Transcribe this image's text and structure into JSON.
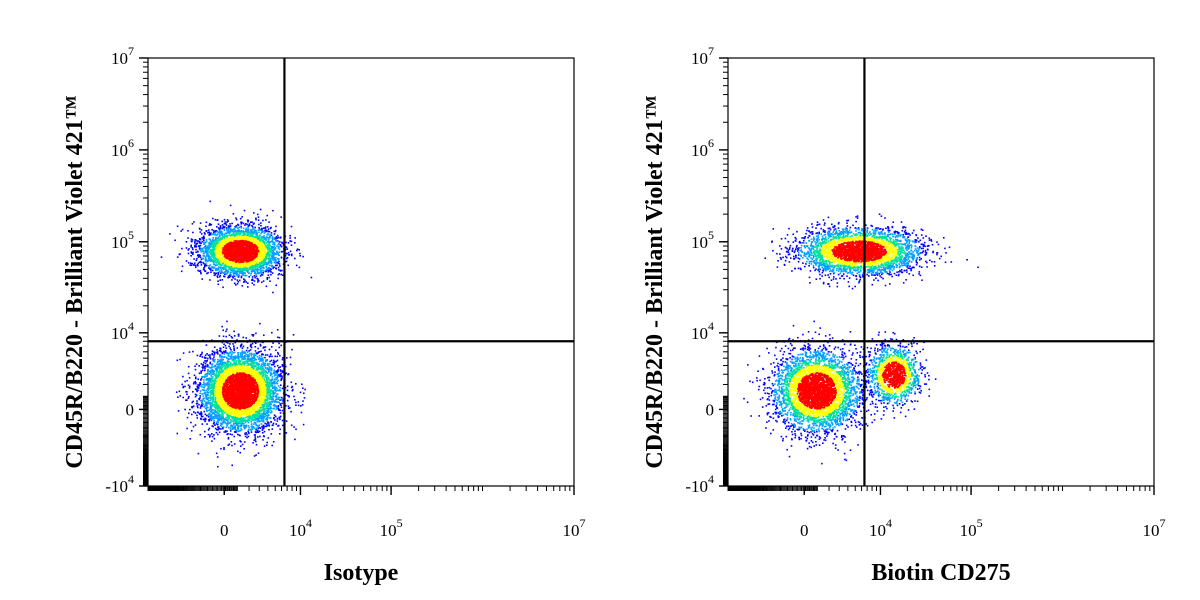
{
  "chart_data": [
    {
      "type": "scatter",
      "subtype": "flow-cytometry-density-plot",
      "xlabel": "Isotype",
      "ylabel": "CD45R/B220 - Brilliant Violet 421™",
      "x_scale": "biexponential",
      "y_scale": "biexponential",
      "xlim": [
        -10000,
        10000000
      ],
      "ylim": [
        -10000,
        10000000
      ],
      "x_ticks": [
        {
          "value": 0,
          "label": "0"
        },
        {
          "value": 10000,
          "label": "10",
          "exp": "4"
        },
        {
          "value": 100000,
          "label": "10",
          "exp": "5"
        },
        {
          "value": 10000000,
          "label": "10",
          "exp": "7"
        }
      ],
      "y_ticks": [
        {
          "value": -10000,
          "label": "-10",
          "exp": "4"
        },
        {
          "value": 0,
          "label": "0"
        },
        {
          "value": 10000,
          "label": "10",
          "exp": "4"
        },
        {
          "value": 100000,
          "label": "10",
          "exp": "5"
        },
        {
          "value": 1000000,
          "label": "10",
          "exp": "6"
        },
        {
          "value": 10000000,
          "label": "10",
          "exp": "7"
        }
      ],
      "quadrant_gate": {
        "x": 6500,
        "y": 8000
      },
      "populations": [
        {
          "x_center": 1200,
          "y_center": 80000,
          "x_spread": 0.28,
          "y_spread": 0.17,
          "weight": 0.42
        },
        {
          "x_center": 1200,
          "y_center": 1500,
          "x_spread": 0.28,
          "y_spread": 0.28,
          "weight": 0.58
        }
      ],
      "grid": false
    },
    {
      "type": "scatter",
      "subtype": "flow-cytometry-density-plot",
      "xlabel": "Biotin CD275",
      "ylabel": "CD45R/B220 - Brilliant Violet 421™",
      "x_scale": "biexponential",
      "y_scale": "biexponential",
      "xlim": [
        -10000,
        10000000
      ],
      "ylim": [
        -10000,
        10000000
      ],
      "x_ticks": [
        {
          "value": 0,
          "label": "0"
        },
        {
          "value": 10000,
          "label": "10",
          "exp": "4"
        },
        {
          "value": 100000,
          "label": "10",
          "exp": "5"
        },
        {
          "value": 10000000,
          "label": "10",
          "exp": "7"
        }
      ],
      "y_ticks": [
        {
          "value": -10000,
          "label": "-10",
          "exp": "4"
        },
        {
          "value": 0,
          "label": "0"
        },
        {
          "value": 10000,
          "label": "10",
          "exp": "4"
        },
        {
          "value": 100000,
          "label": "10",
          "exp": "5"
        },
        {
          "value": 1000000,
          "label": "10",
          "exp": "6"
        },
        {
          "value": 10000000,
          "label": "10",
          "exp": "7"
        }
      ],
      "quadrant_gate": {
        "x": 6500,
        "y": 8000
      },
      "populations": [
        {
          "x_center": 5500,
          "y_center": 80000,
          "x_spread": 0.42,
          "y_spread": 0.16,
          "weight": 0.4
        },
        {
          "x_center": 900,
          "y_center": 1500,
          "x_spread": 0.3,
          "y_spread": 0.28,
          "weight": 0.45
        },
        {
          "x_center": 14000,
          "y_center": 3000,
          "x_spread": 0.18,
          "y_spread": 0.2,
          "weight": 0.15
        }
      ],
      "grid": false
    }
  ],
  "colors": {
    "axis": "#000000",
    "density_scale": [
      "#0000ff",
      "#00a0ff",
      "#00e0a0",
      "#80ff00",
      "#ffff00",
      "#ff8000",
      "#ff0000"
    ]
  }
}
